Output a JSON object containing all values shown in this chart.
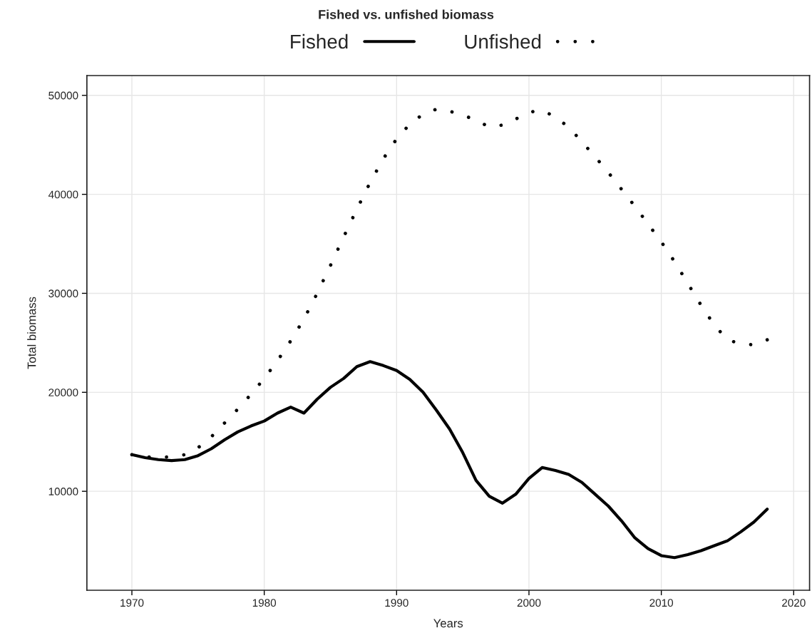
{
  "chart_data": {
    "type": "line",
    "title": "Fished vs. unfished biomass",
    "xlabel": "Years",
    "ylabel": "Total biomass",
    "x": [
      1970,
      1971,
      1972,
      1973,
      1974,
      1975,
      1976,
      1977,
      1978,
      1979,
      1980,
      1981,
      1982,
      1983,
      1984,
      1985,
      1986,
      1987,
      1988,
      1989,
      1990,
      1991,
      1992,
      1993,
      1994,
      1995,
      1996,
      1997,
      1998,
      1999,
      2000,
      2001,
      2002,
      2003,
      2004,
      2005,
      2006,
      2007,
      2008,
      2009,
      2010,
      2011,
      2012,
      2013,
      2014,
      2015,
      2016,
      2017,
      2018
    ],
    "series": [
      {
        "name": "Fished",
        "color": "#000000",
        "line_style": "solid",
        "values": [
          13700,
          13400,
          13200,
          13100,
          13200,
          13600,
          14300,
          15200,
          16000,
          16600,
          17100,
          17900,
          18500,
          17900,
          19300,
          20500,
          21400,
          22600,
          23100,
          22700,
          22200,
          21300,
          20000,
          18200,
          16300,
          13900,
          11100,
          9500,
          8800,
          9700,
          11300,
          12400,
          12100,
          11700,
          10900,
          9700,
          8500,
          7000,
          5300,
          4200,
          3500,
          3300,
          3600,
          4000,
          4500,
          5000,
          5900,
          6900,
          8200
        ]
      },
      {
        "name": "Unfished",
        "color": "#000000",
        "line_style": "dotted",
        "values": [
          13700,
          13500,
          13400,
          13500,
          13700,
          14400,
          15500,
          16900,
          18300,
          19800,
          21400,
          23200,
          25200,
          27400,
          30000,
          32800,
          35700,
          38500,
          41200,
          43600,
          45600,
          47100,
          48100,
          48600,
          48400,
          48000,
          47500,
          46800,
          47000,
          47600,
          48300,
          48500,
          47800,
          46800,
          45300,
          43800,
          42200,
          40500,
          38800,
          37000,
          35200,
          33200,
          31000,
          28800,
          26800,
          25300,
          24900,
          24800,
          25300
        ]
      }
    ],
    "xlim": [
      1966.6,
      2021.2
    ],
    "xticks": [
      1970,
      1980,
      1990,
      2000,
      2010,
      2020
    ],
    "ylim": [
      0,
      52000
    ],
    "yticks": [
      10000,
      20000,
      30000,
      40000,
      50000
    ],
    "grid": true,
    "legend": "top",
    "marker": "none"
  }
}
